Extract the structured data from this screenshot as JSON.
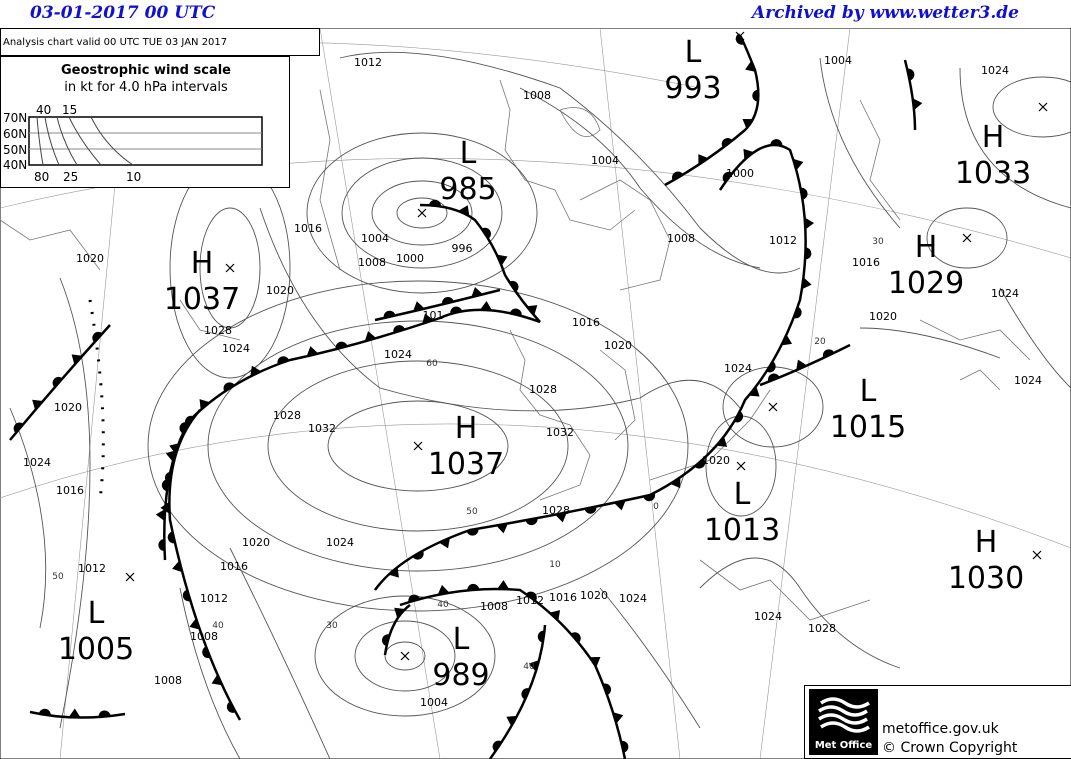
{
  "header": {
    "date_time": "03-01-2017  00 UTC",
    "archive": "Archived by www.wetter3.de"
  },
  "chart_info": {
    "valid": "Analysis chart  valid 00 UTC TUE 03  JAN 2017"
  },
  "wind_scale": {
    "title": "Geostrophic wind scale",
    "subtitle": "in kt for 4.0 hPa intervals",
    "latitudes": [
      "70N",
      "60N",
      "50N",
      "40N"
    ],
    "top_labels": [
      "40",
      "15"
    ],
    "bottom_labels": [
      "80",
      "25",
      "10"
    ]
  },
  "pressure_centers": [
    {
      "type": "L",
      "value": "993"
    },
    {
      "type": "L",
      "value": "985"
    },
    {
      "type": "H",
      "value": "1037"
    },
    {
      "type": "H",
      "value": "1037"
    },
    {
      "type": "H",
      "value": "1033"
    },
    {
      "type": "H",
      "value": "1029"
    },
    {
      "type": "L",
      "value": "1015"
    },
    {
      "type": "L",
      "value": "1013"
    },
    {
      "type": "H",
      "value": "1030"
    },
    {
      "type": "L",
      "value": "1005"
    },
    {
      "type": "L",
      "value": "989"
    }
  ],
  "isobar_labels": [
    "1012",
    "1008",
    "1004",
    "1004",
    "1024",
    "1000",
    "1008",
    "1012",
    "1016",
    "1004",
    "1008",
    "1000",
    "996",
    "1020",
    "1020",
    "1028",
    "1024",
    "1016",
    "1020",
    "1024",
    "1028",
    "1032",
    "1028",
    "1032",
    "1024",
    "1020",
    "1016",
    "1024",
    "1024",
    "1020",
    "1024",
    "1016",
    "1020",
    "1028",
    "1024",
    "1020",
    "1016",
    "1012",
    "1012",
    "1008",
    "1008",
    "1008",
    "1012",
    "1016",
    "1020",
    "1024",
    "1024",
    "1028",
    "1004",
    "101"
  ],
  "wind_labels": [
    "60",
    "50",
    "30",
    "40",
    "50",
    "10",
    "40",
    "20",
    "30",
    "0",
    "40"
  ],
  "colors": {
    "header_text": "#1010d0",
    "isobar": "#555555",
    "front": "#000000"
  },
  "logo": {
    "name": "Met Office",
    "url": "metoffice.gov.uk",
    "copyright": "© Crown Copyright"
  }
}
